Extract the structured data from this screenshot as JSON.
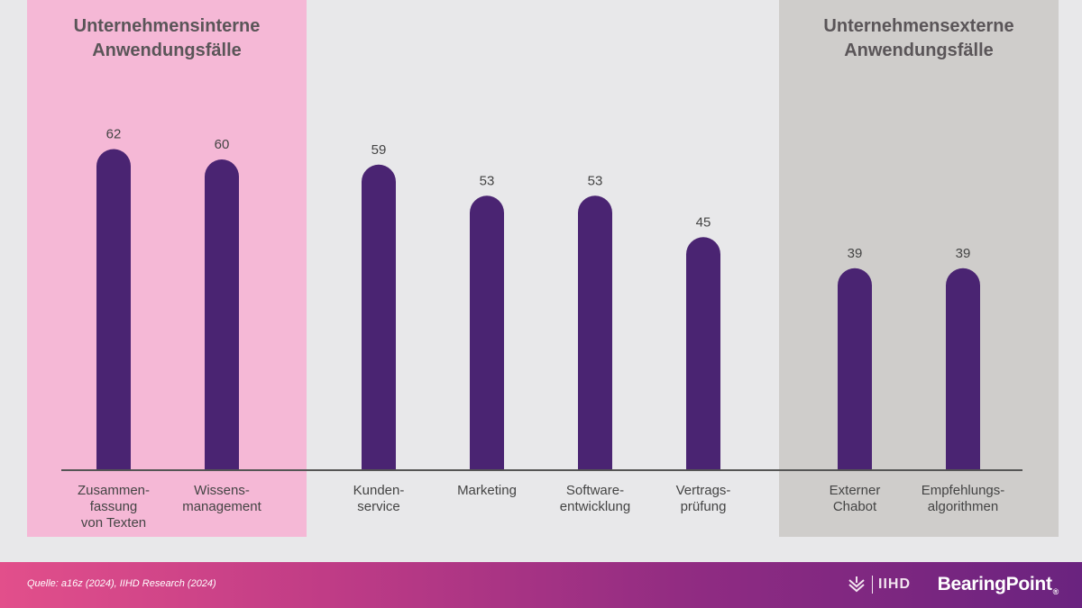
{
  "zones": {
    "internal_title": "Unternehmensinterne\nAnwendungsfälle",
    "external_title": "Unternehmensexterne\nAnwendungsfälle"
  },
  "chart_data": {
    "type": "bar",
    "categories": [
      "Zusammen-\nfassung\nvon Texten",
      "Wissens-\nmanagement",
      "Kunden-\nservice",
      "Marketing",
      "Software-\nentwicklung",
      "Vertrags-\nprüfung",
      "Externer\nChabot",
      "Empfehlungs-\nalgorithmen"
    ],
    "values": [
      62,
      60,
      59,
      53,
      53,
      45,
      39,
      39
    ],
    "bar_color": "#4a2472",
    "label_color": "#444444",
    "baseline_color": "#555555",
    "grid": false,
    "legend": "none"
  },
  "footer": {
    "source": "Quelle: a16z (2024), IIHD Research (2024)",
    "partner_logo": "IIHD",
    "brand_logo": "BearingPoint",
    "brand_mark": "®"
  }
}
